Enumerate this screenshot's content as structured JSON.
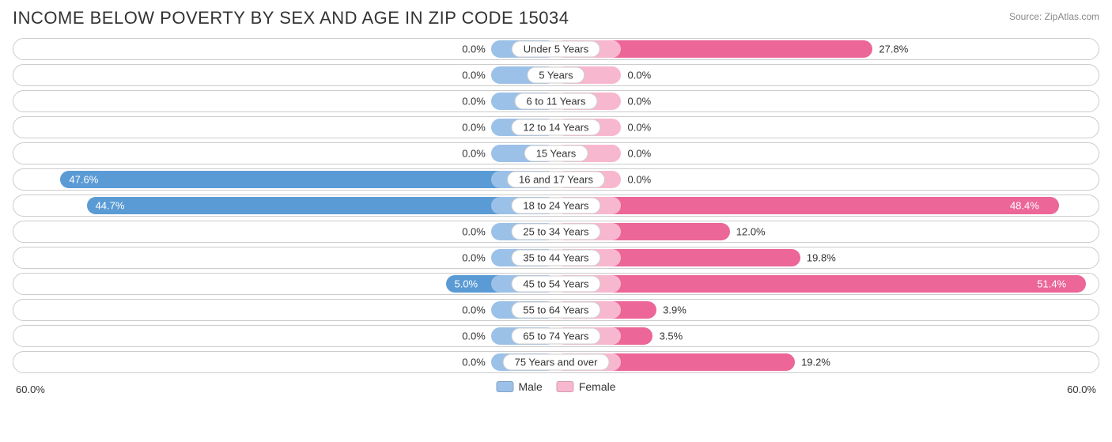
{
  "title": "INCOME BELOW POVERTY BY SEX AND AGE IN ZIP CODE 15034",
  "source": "Source: ZipAtlas.com",
  "chart": {
    "type": "diverging-bar",
    "axis_max": 60.0,
    "axis_label_left": "60.0%",
    "axis_label_right": "60.0%",
    "male_base_width_pct": 6.0,
    "female_base_width_pct": 6.0,
    "colors": {
      "male_base": "#9cc1e8",
      "male_strong": "#5a9bd5",
      "female_base": "#f7b8cf",
      "female_strong": "#ec6698",
      "track_border": "#cccccc",
      "background": "#ffffff",
      "text": "#333333"
    },
    "legend": [
      {
        "label": "Male",
        "color": "#9cc1e8"
      },
      {
        "label": "Female",
        "color": "#f7b8cf"
      }
    ],
    "rows": [
      {
        "label": "Under 5 Years",
        "male": 0.0,
        "female": 27.8
      },
      {
        "label": "5 Years",
        "male": 0.0,
        "female": 0.0
      },
      {
        "label": "6 to 11 Years",
        "male": 0.0,
        "female": 0.0
      },
      {
        "label": "12 to 14 Years",
        "male": 0.0,
        "female": 0.0
      },
      {
        "label": "15 Years",
        "male": 0.0,
        "female": 0.0
      },
      {
        "label": "16 and 17 Years",
        "male": 47.6,
        "female": 0.0
      },
      {
        "label": "18 to 24 Years",
        "male": 44.7,
        "female": 48.4
      },
      {
        "label": "25 to 34 Years",
        "male": 0.0,
        "female": 12.0
      },
      {
        "label": "35 to 44 Years",
        "male": 0.0,
        "female": 19.8
      },
      {
        "label": "45 to 54 Years",
        "male": 5.0,
        "female": 51.4
      },
      {
        "label": "55 to 64 Years",
        "male": 0.0,
        "female": 3.9
      },
      {
        "label": "65 to 74 Years",
        "male": 0.0,
        "female": 3.5
      },
      {
        "label": "75 Years and over",
        "male": 0.0,
        "female": 19.2
      }
    ]
  }
}
